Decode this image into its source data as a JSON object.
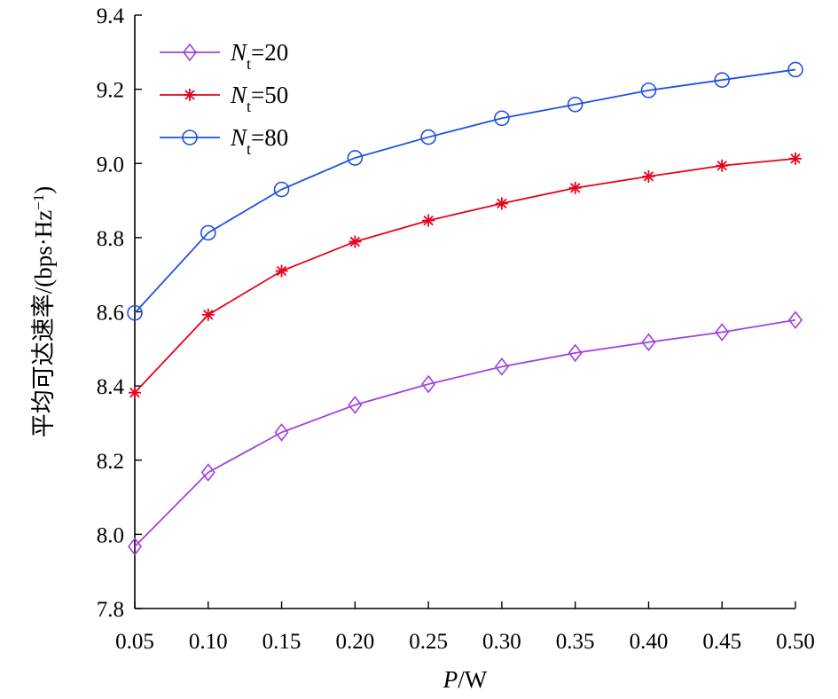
{
  "chart_data": {
    "type": "line",
    "xlabel": "P/W",
    "xlabel_italic_part": "P",
    "xlabel_rest": "/W",
    "ylabel": "平均可达速率/(bps·Hz⁻¹)",
    "ylabel_main": "平均可达速率/(bps·Hz",
    "ylabel_sup": "−1",
    "ylabel_tail": ")",
    "xlim": [
      0.05,
      0.5
    ],
    "ylim": [
      7.8,
      9.4
    ],
    "x": [
      0.05,
      0.1,
      0.15,
      0.2,
      0.25,
      0.3,
      0.35,
      0.4,
      0.45,
      0.5
    ],
    "x_tick_labels": [
      "0.05",
      "0.10",
      "0.15",
      "0.20",
      "0.25",
      "0.30",
      "0.35",
      "0.40",
      "0.45",
      "0.50"
    ],
    "y_ticks": [
      7.8,
      8.0,
      8.2,
      8.4,
      8.6,
      8.8,
      9.0,
      9.2,
      9.4
    ],
    "y_tick_labels": [
      "7.8",
      "8.0",
      "8.2",
      "8.4",
      "8.6",
      "8.8",
      "9.0",
      "9.2",
      "9.4"
    ],
    "grid": false,
    "legend_position": "top-left",
    "series": [
      {
        "name": "Nt=20",
        "legend_symbol": "N",
        "legend_sub": "t",
        "legend_value": "=20",
        "color": "#a040e0",
        "marker": "diamond",
        "values": [
          7.967,
          8.167,
          8.275,
          8.349,
          8.405,
          8.452,
          8.489,
          8.518,
          8.545,
          8.578
        ]
      },
      {
        "name": "Nt=50",
        "legend_symbol": "N",
        "legend_sub": "t",
        "legend_value": "=50",
        "color": "#e8001c",
        "marker": "asterisk",
        "values": [
          8.382,
          8.592,
          8.71,
          8.789,
          8.846,
          8.892,
          8.934,
          8.965,
          8.994,
          9.013
        ]
      },
      {
        "name": "Nt=80",
        "legend_symbol": "N",
        "legend_sub": "t",
        "legend_value": "=80",
        "color": "#1f50e0",
        "marker": "circle",
        "values": [
          8.597,
          8.813,
          8.93,
          9.015,
          9.071,
          9.122,
          9.159,
          9.197,
          9.225,
          9.253
        ]
      }
    ]
  }
}
